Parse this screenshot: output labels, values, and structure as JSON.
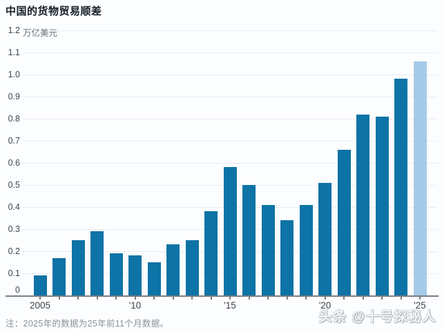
{
  "header": {
    "title": "中国的货物贸易顺差"
  },
  "footer": {
    "note": "注：2025年的数据为25年前11个月数据。"
  },
  "watermark": {
    "text": "头条 @十号探秘人"
  },
  "colors": {
    "bar": "#0e73a6",
    "bar_highlight": "#a5cae8",
    "gridline": "#e9edf1",
    "axis": "#787d82",
    "title_text": "#151e28",
    "tick_label": "#40474e",
    "unit_label": "#6a727a",
    "note_text": "#8a9198",
    "background": "#fcfdfe"
  },
  "chart_data": {
    "type": "bar",
    "title": "中国的货物贸易顺差",
    "ylabel": "万亿美元",
    "categories": [
      2005,
      2006,
      2007,
      2008,
      2009,
      2010,
      2011,
      2012,
      2013,
      2014,
      2015,
      2016,
      2017,
      2018,
      2019,
      2020,
      2021,
      2022,
      2023,
      2024,
      2025
    ],
    "values": [
      0.09,
      0.17,
      0.25,
      0.29,
      0.19,
      0.18,
      0.15,
      0.23,
      0.25,
      0.38,
      0.58,
      0.5,
      0.41,
      0.34,
      0.41,
      0.51,
      0.66,
      0.82,
      0.81,
      0.98,
      1.06
    ],
    "highlight_year": 2025,
    "ylim": [
      0,
      1.2
    ],
    "ytick_step": 0.1,
    "ytick_labels": [
      "0",
      "0.1",
      "0.2",
      "0.3",
      "0.4",
      "0.5",
      "0.6",
      "0.7",
      "0.8",
      "0.9",
      "1.0",
      "1.1",
      "1.2"
    ],
    "xtick_labels": [
      {
        "year": 2005,
        "label": "2005"
      },
      {
        "year": 2010,
        "label": "'10"
      },
      {
        "year": 2015,
        "label": "'15"
      },
      {
        "year": 2020,
        "label": "'20"
      },
      {
        "year": 2025,
        "label": "'25"
      }
    ],
    "grid": true,
    "legend": false,
    "note": "注：2025年的数据为25年前11个月数据。"
  }
}
